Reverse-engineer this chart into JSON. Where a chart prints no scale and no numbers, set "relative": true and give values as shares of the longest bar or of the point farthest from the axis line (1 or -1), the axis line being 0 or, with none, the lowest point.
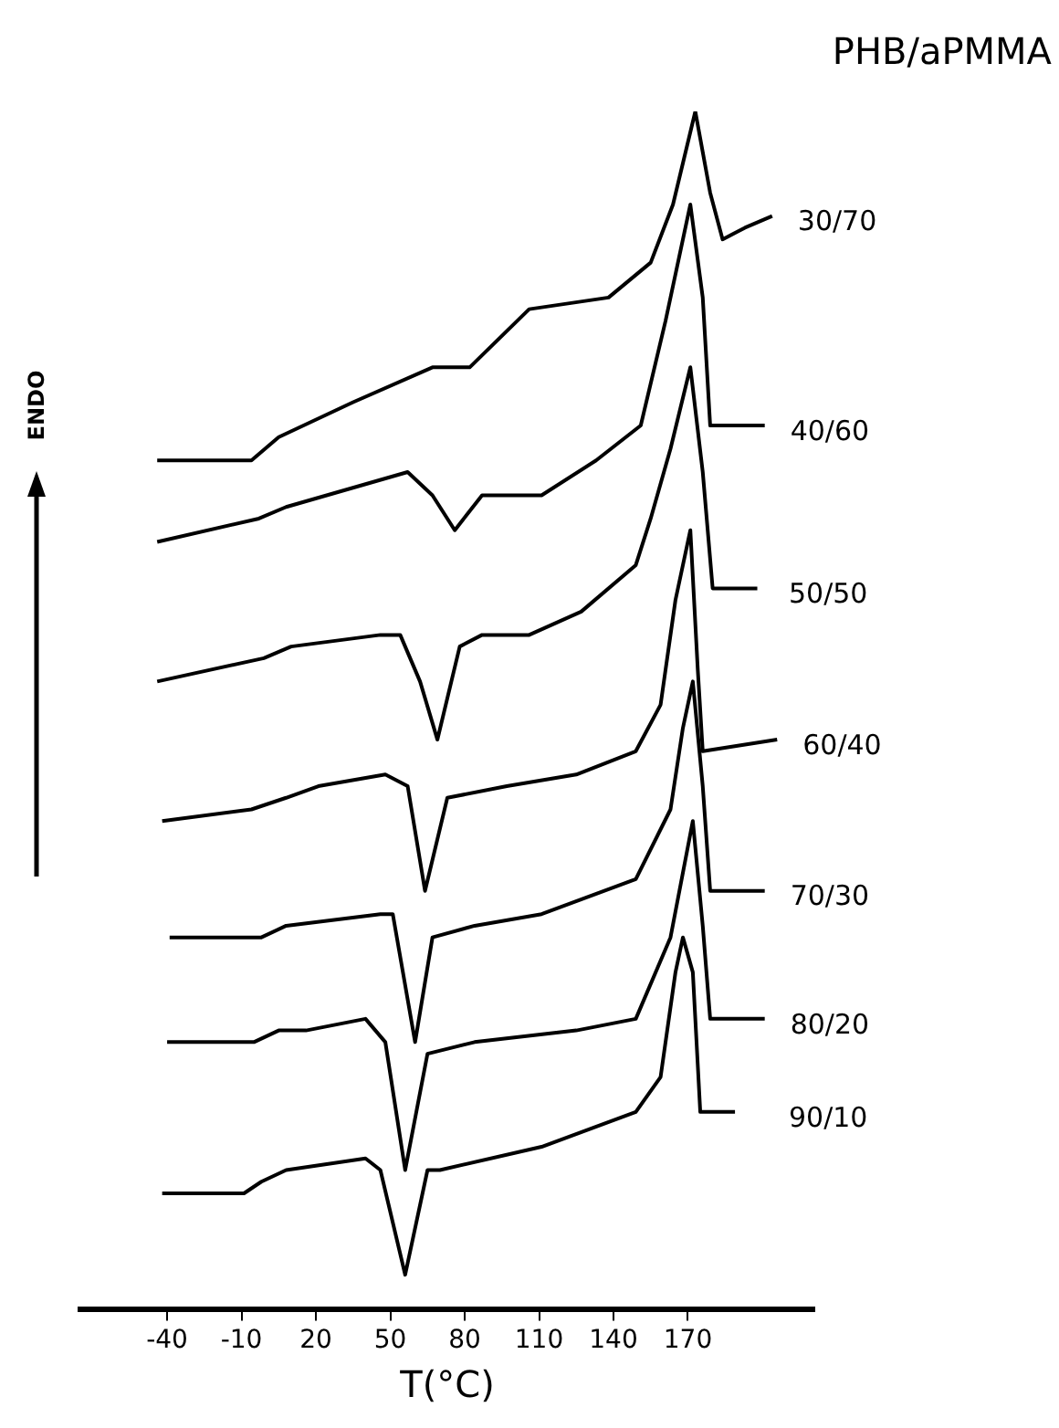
{
  "chart_data": {
    "type": "line",
    "title": "PHB/aPMMA",
    "xlabel": "T(°C)",
    "ylabel": "ENDO",
    "relative": true,
    "xlim": [
      -75,
      221
    ],
    "xticks": [
      -40,
      -10,
      20,
      50,
      80,
      110,
      140,
      170
    ],
    "marker": "none",
    "legend": false,
    "series": [
      {
        "name": "30/70",
        "color": "#000000",
        "x": [
          -44,
          -25,
          -6,
          5,
          35,
          67,
          82,
          106,
          138,
          155,
          164,
          173,
          179,
          184,
          193,
          204
        ],
        "values": [
          0.7,
          0.7,
          0.7,
          0.72,
          0.75,
          0.78,
          0.78,
          0.83,
          0.84,
          0.87,
          0.92,
          1.0,
          0.93,
          0.89,
          0.9,
          0.91
        ]
      },
      {
        "name": "40/60",
        "color": "#000000",
        "x": [
          -44,
          -3,
          8,
          57,
          67,
          76,
          87,
          97,
          111,
          133,
          151,
          161,
          171,
          176,
          179,
          190,
          201
        ],
        "values": [
          0.63,
          0.65,
          0.66,
          0.69,
          0.67,
          0.64,
          0.67,
          0.67,
          0.67,
          0.7,
          0.73,
          0.82,
          0.92,
          0.84,
          0.73,
          0.73,
          0.73
        ]
      },
      {
        "name": "50/50",
        "color": "#000000",
        "x": [
          -44,
          -1,
          10,
          46,
          54,
          62,
          69,
          78,
          87,
          106,
          127,
          149,
          155,
          163,
          171,
          176,
          180,
          198
        ],
        "values": [
          0.51,
          0.53,
          0.54,
          0.55,
          0.55,
          0.51,
          0.46,
          0.54,
          0.55,
          0.55,
          0.57,
          0.61,
          0.65,
          0.71,
          0.78,
          0.69,
          0.59,
          0.59
        ]
      },
      {
        "name": "60/40",
        "color": "#000000",
        "x": [
          -42,
          -6,
          8,
          21,
          48,
          57,
          64,
          73,
          97,
          125,
          149,
          159,
          165,
          171,
          174,
          176,
          206
        ],
        "values": [
          0.39,
          0.4,
          0.41,
          0.42,
          0.43,
          0.42,
          0.33,
          0.41,
          0.42,
          0.43,
          0.45,
          0.49,
          0.58,
          0.64,
          0.52,
          0.45,
          0.46
        ]
      },
      {
        "name": "70/30",
        "color": "#000000",
        "x": [
          -39,
          -2,
          8,
          46,
          51,
          60,
          67,
          84,
          111,
          149,
          163,
          168,
          172,
          176,
          179,
          201
        ],
        "values": [
          0.29,
          0.29,
          0.3,
          0.31,
          0.31,
          0.2,
          0.29,
          0.3,
          0.31,
          0.34,
          0.4,
          0.47,
          0.51,
          0.42,
          0.33,
          0.33
        ]
      },
      {
        "name": "80/20",
        "color": "#000000",
        "x": [
          -40,
          -5,
          5,
          16,
          40,
          48,
          56,
          65,
          84,
          125,
          149,
          163,
          172,
          176,
          179,
          201
        ],
        "values": [
          0.2,
          0.2,
          0.21,
          0.21,
          0.22,
          0.2,
          0.09,
          0.19,
          0.2,
          0.21,
          0.22,
          0.29,
          0.39,
          0.3,
          0.22,
          0.22
        ]
      },
      {
        "name": "90/10",
        "color": "#000000",
        "x": [
          -42,
          -9,
          -2,
          8,
          40,
          46,
          56,
          65,
          70,
          111,
          149,
          159,
          165,
          168,
          172,
          175,
          189
        ],
        "values": [
          0.07,
          0.07,
          0.08,
          0.09,
          0.1,
          0.09,
          0.0,
          0.09,
          0.09,
          0.11,
          0.14,
          0.17,
          0.26,
          0.29,
          0.26,
          0.14,
          0.14
        ]
      }
    ]
  }
}
